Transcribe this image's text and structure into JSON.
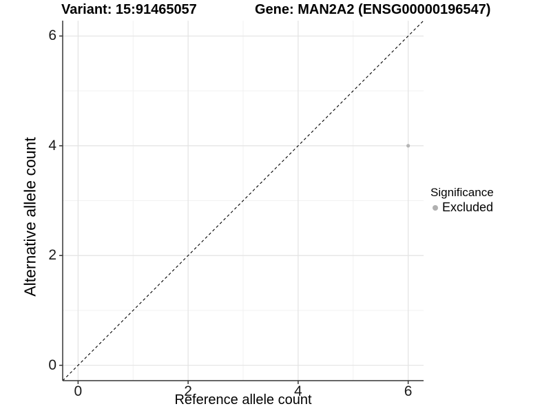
{
  "figure": {
    "background": "#ffffff"
  },
  "chart_data": {
    "type": "scatter",
    "title_left": "Variant: 15:91465057",
    "title_right": "Gene: MAN2A2 (ENSG00000196547)",
    "xlabel": "Reference allele count",
    "ylabel": "Alternative allele count",
    "xlim": [
      -0.28,
      6.28
    ],
    "ylim": [
      -0.28,
      6.28
    ],
    "x_ticks": [
      0,
      2,
      4,
      6
    ],
    "x_minor_ticks": [
      1,
      3,
      5
    ],
    "y_ticks": [
      0,
      2,
      4,
      6
    ],
    "y_minor_ticks": [
      1,
      3,
      5
    ],
    "grid": true,
    "identity_line": {
      "equation": "y = x",
      "style": "dashed",
      "color": "#000000"
    },
    "series": [
      {
        "name": "Excluded",
        "color": "#b5b5b5",
        "point_radius": 2.6,
        "points": [
          {
            "x": 6,
            "y": 4
          }
        ]
      }
    ],
    "legend": {
      "position": "right",
      "title": "Significance",
      "entries": [
        {
          "label": "Excluded",
          "color": "#b0b0b0"
        }
      ]
    }
  },
  "colors": {
    "grid_major": "#e3e3e3",
    "grid_minor": "#f1f1f1",
    "axis_line": "#333333",
    "tick_mark": "#333333",
    "tick_text": "#1a1a1a"
  }
}
